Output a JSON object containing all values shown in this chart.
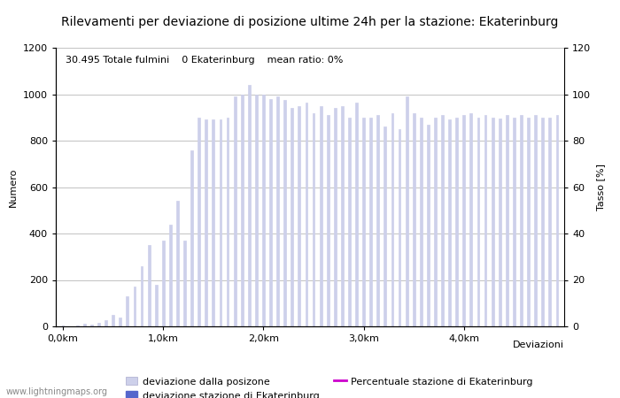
{
  "title": "Rilevamenti per deviazione di posizione ultime 24h per la stazione: Ekaterinburg",
  "subtitle": "30.495 Totale fulmini    0 Ekaterinburg    mean ratio: 0%",
  "xlabel": "Deviazioni",
  "ylabel_left": "Numero",
  "ylabel_right": "Tasso [%]",
  "watermark": "www.lightningmaps.org",
  "bar_values": [
    2,
    1,
    5,
    12,
    8,
    15,
    25,
    50,
    40,
    130,
    170,
    260,
    350,
    180,
    370,
    440,
    540,
    370,
    760,
    900,
    890,
    890,
    890,
    900,
    990,
    1000,
    1040,
    1000,
    1000,
    980,
    990,
    975,
    940,
    950,
    965,
    920,
    950,
    910,
    940,
    950,
    900,
    965,
    900,
    900,
    910,
    860,
    920,
    850,
    990,
    920,
    900,
    870,
    900,
    910,
    890,
    900,
    910,
    920,
    900,
    910,
    900,
    895,
    910,
    900,
    910,
    900,
    910,
    900,
    900,
    910
  ],
  "bar_width": 0.35,
  "bar_color": "#cdd0ea",
  "bar_edge_color": "#cdd0ea",
  "station_color": "#5566cc",
  "line_color": "#cc00cc",
  "ylim_left": [
    0,
    1200
  ],
  "ylim_right": [
    0,
    120
  ],
  "yticks_left": [
    0,
    200,
    400,
    600,
    800,
    1000,
    1200
  ],
  "yticks_right": [
    0,
    20,
    40,
    60,
    80,
    100,
    120
  ],
  "xtick_labels": [
    "0,0km",
    "1,0km",
    "2,0km",
    "3,0km",
    "4,0km"
  ],
  "xtick_positions": [
    0,
    14,
    28,
    42,
    56
  ],
  "grid_color": "#aaaaaa",
  "background_color": "#ffffff",
  "legend_items": [
    {
      "label": "deviazione dalla posizone",
      "color": "#cdd0ea"
    },
    {
      "label": "deviazione stazione di Ekaterinburg",
      "color": "#5566cc"
    },
    {
      "label": "Percentuale stazione di Ekaterinburg",
      "color": "#cc00cc",
      "linestyle": "-"
    }
  ],
  "title_fontsize": 10,
  "axis_fontsize": 8,
  "tick_fontsize": 8,
  "annotation_fontsize": 8,
  "n_bars": 70
}
